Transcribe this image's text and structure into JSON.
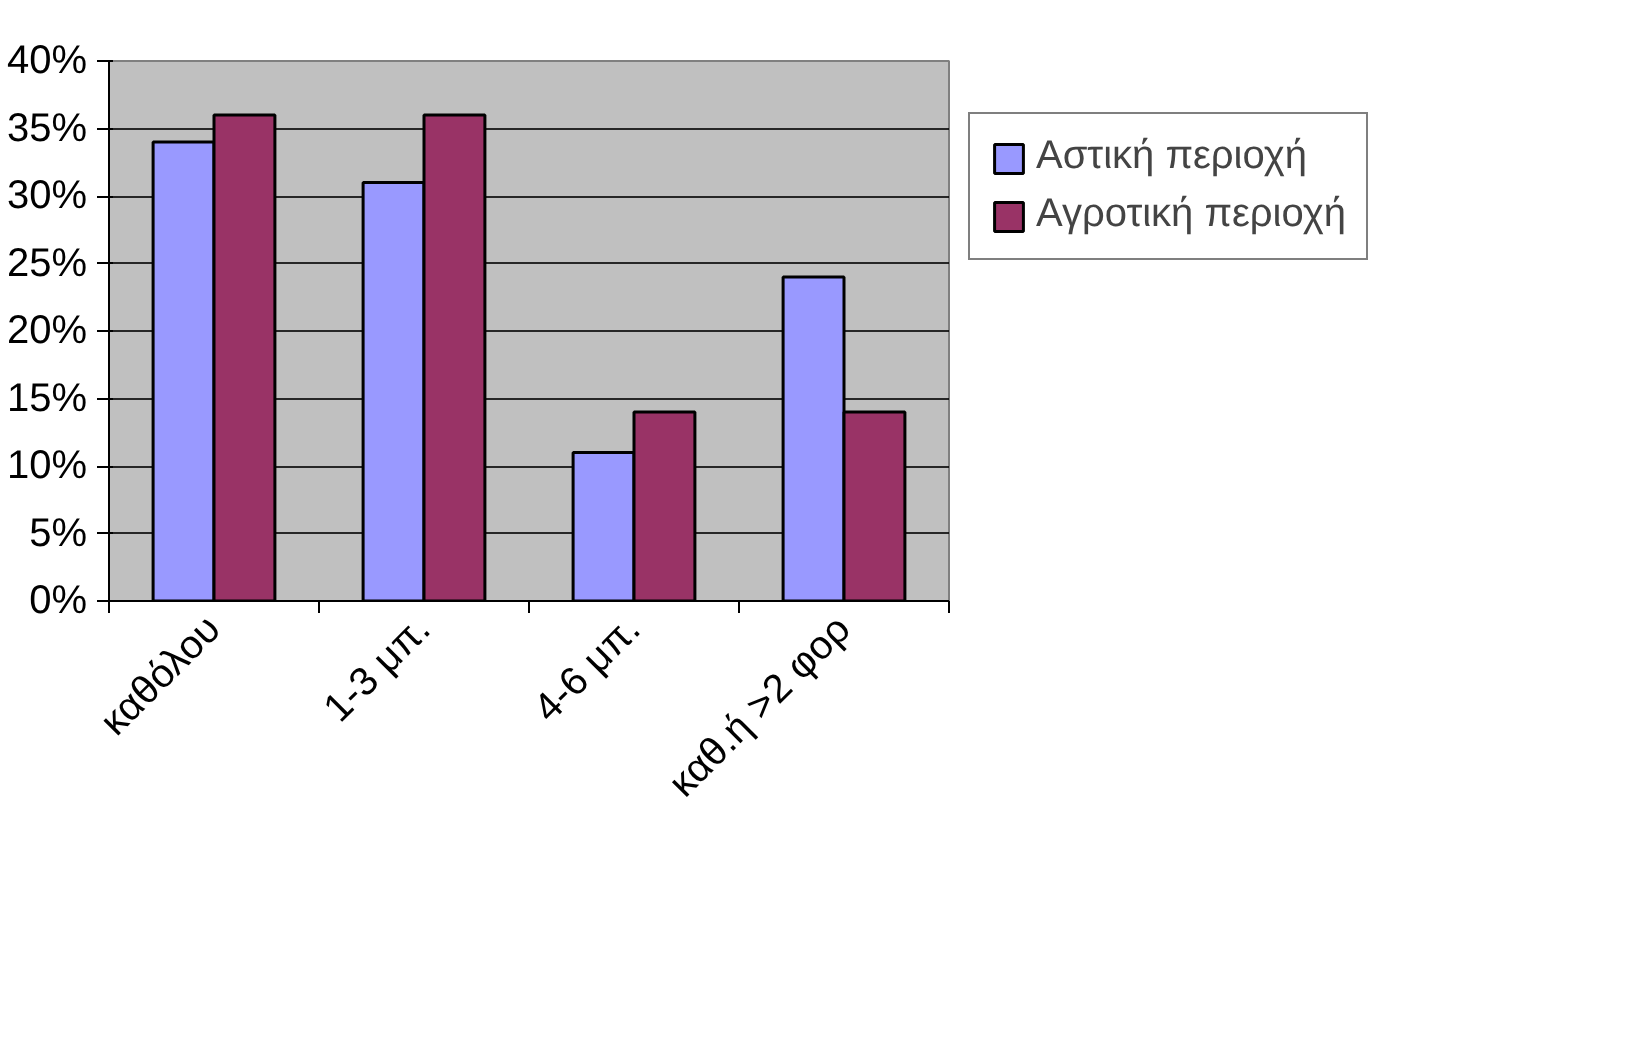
{
  "chart_data": {
    "type": "bar",
    "categories": [
      "καθόλου",
      "1-3 μπ.",
      "4-6 μπ.",
      "καθ.ή >2 φορ"
    ],
    "series": [
      {
        "name": "Αστική περιοχή",
        "color": "#9999ff",
        "values": [
          34,
          31,
          11,
          24
        ]
      },
      {
        "name": "Αγροτική περιοχή",
        "color": "#993366",
        "values": [
          36,
          36,
          14,
          14
        ]
      }
    ],
    "ylim": [
      0,
      40
    ],
    "yticks": [
      {
        "value": 0,
        "label": "0%"
      },
      {
        "value": 5,
        "label": "5%"
      },
      {
        "value": 10,
        "label": "10%"
      },
      {
        "value": 15,
        "label": "15%"
      },
      {
        "value": 20,
        "label": "20%"
      },
      {
        "value": 25,
        "label": "25%"
      },
      {
        "value": 30,
        "label": "30%"
      },
      {
        "value": 35,
        "label": "35%"
      },
      {
        "value": 40,
        "label": "40%"
      }
    ],
    "grid": "y",
    "legend": "right"
  }
}
